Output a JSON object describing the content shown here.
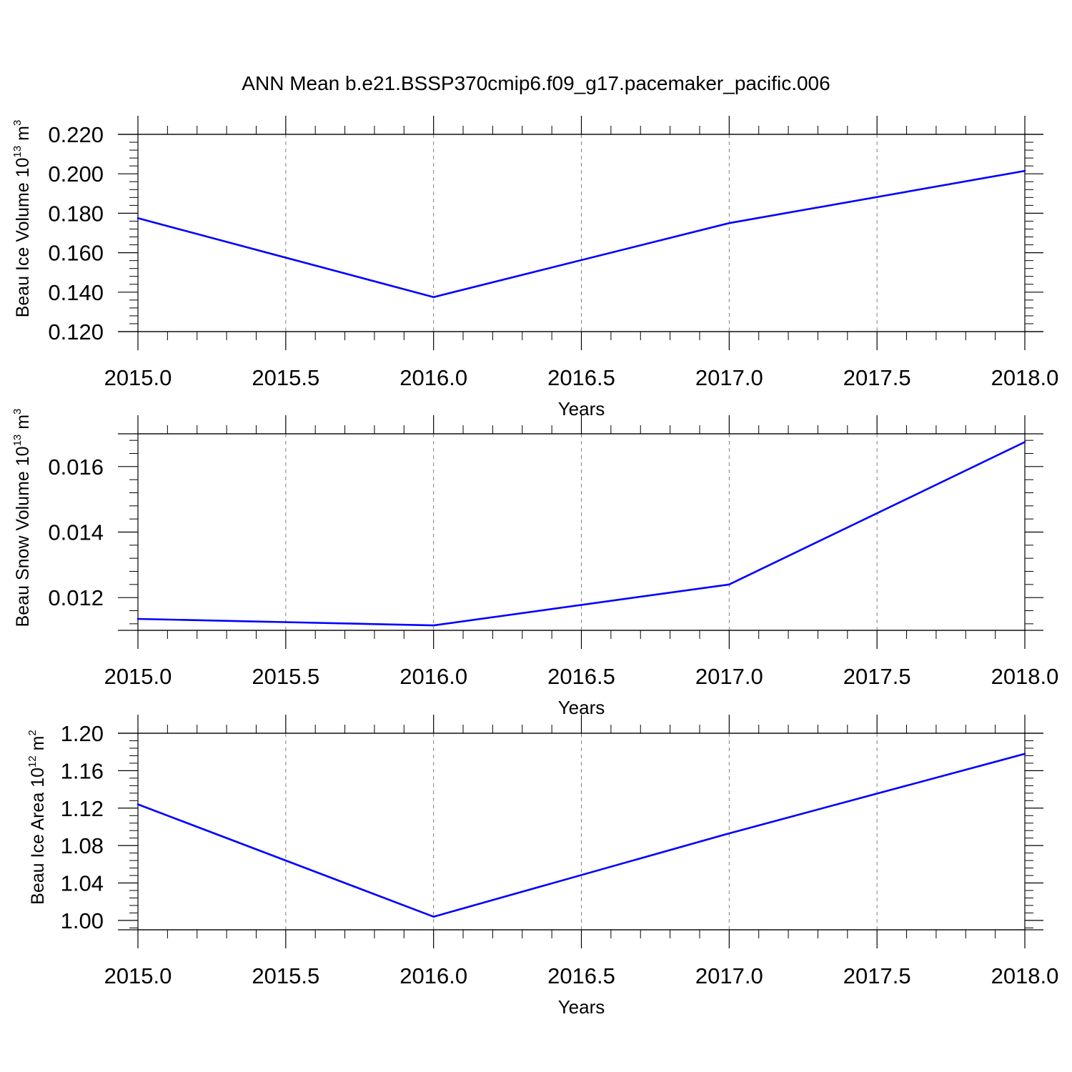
{
  "page_title": "ANN Mean b.e21.BSSP370cmip6.f09_g17.pacemaker_pacific.006",
  "colors": {
    "line": "#0000ff",
    "axis": "#000000",
    "grid": "#808080"
  },
  "chart_data": [
    {
      "type": "line",
      "xlabel": "Years",
      "ylabel": {
        "text": "Beau Ice Volume 10",
        "sup1": "13",
        "unit": " m",
        "sup2": "3"
      },
      "x": [
        2015.0,
        2016.0,
        2017.0,
        2018.0
      ],
      "series": [
        {
          "values": [
            0.1775,
            0.1375,
            0.175,
            0.2015
          ]
        }
      ],
      "xlim": [
        2015.0,
        2018.0
      ],
      "ylim": [
        0.12,
        0.22
      ],
      "xticks": [
        "2015.0",
        "2015.5",
        "2016.0",
        "2016.5",
        "2017.0",
        "2017.5",
        "2018.0"
      ],
      "yticks": [
        "0.120",
        "0.140",
        "0.160",
        "0.180",
        "0.200",
        "0.220"
      ],
      "grid": "vertical dashed"
    },
    {
      "type": "line",
      "xlabel": "Years",
      "ylabel": {
        "text": "Beau Snow Volume 10",
        "sup1": "13",
        "unit": " m",
        "sup2": "3"
      },
      "x": [
        2015.0,
        2016.0,
        2017.0,
        2018.0
      ],
      "series": [
        {
          "values": [
            0.01135,
            0.01115,
            0.0124,
            0.01675
          ]
        }
      ],
      "xlim": [
        2015.0,
        2018.0
      ],
      "ylim": [
        0.011,
        0.017
      ],
      "xticks": [
        "2015.0",
        "2015.5",
        "2016.0",
        "2016.5",
        "2017.0",
        "2017.5",
        "2018.0"
      ],
      "yticks": [
        "0.012",
        "0.014",
        "0.016"
      ],
      "grid": "vertical dashed"
    },
    {
      "type": "line",
      "xlabel": "Years",
      "ylabel": {
        "text": "Beau Ice Area 10",
        "sup1": "12",
        "unit": " m",
        "sup2": "2"
      },
      "x": [
        2015.0,
        2016.0,
        2017.0,
        2018.0
      ],
      "series": [
        {
          "values": [
            1.124,
            1.004,
            1.093,
            1.178
          ]
        }
      ],
      "xlim": [
        2015.0,
        2018.0
      ],
      "ylim": [
        0.99,
        1.2
      ],
      "xticks": [
        "2015.0",
        "2015.5",
        "2016.0",
        "2016.5",
        "2017.0",
        "2017.5",
        "2018.0"
      ],
      "yticks": [
        "1.00",
        "1.04",
        "1.08",
        "1.12",
        "1.16",
        "1.20"
      ],
      "grid": "vertical dashed"
    }
  ]
}
